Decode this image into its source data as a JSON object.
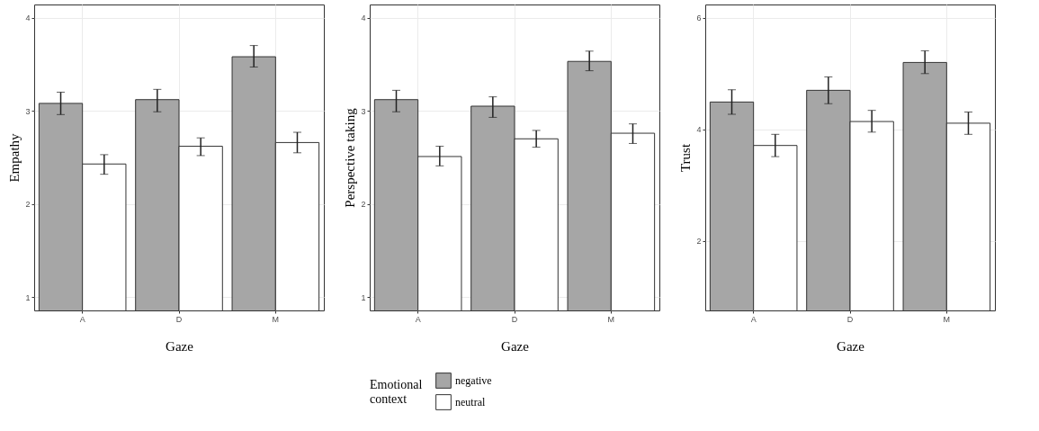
{
  "chart_data": [
    {
      "type": "bar",
      "categories": [
        "A",
        "D",
        "M"
      ],
      "xlabel": "Gaze",
      "ylabel": "Empathy",
      "ylim": [
        0.86,
        4.14
      ],
      "yticks": [
        1,
        2,
        3,
        4
      ],
      "grid": true,
      "series": [
        {
          "color": "#a6a6a6",
          "values": [
            3.08,
            3.12,
            3.58
          ],
          "errors": [
            [
              2.96,
              3.2
            ],
            [
              2.99,
              3.23
            ],
            [
              3.47,
              3.7
            ]
          ]
        },
        {
          "color": "#ffffff",
          "values": [
            2.43,
            2.62,
            2.66
          ],
          "errors": [
            [
              2.32,
              2.53
            ],
            [
              2.52,
              2.71
            ],
            [
              2.55,
              2.77
            ]
          ]
        }
      ]
    },
    {
      "type": "bar",
      "categories": [
        "A",
        "D",
        "M"
      ],
      "xlabel": "Gaze",
      "ylabel": "Perspective taking",
      "ylim": [
        0.86,
        4.14
      ],
      "yticks": [
        1,
        2,
        3,
        4
      ],
      "grid": true,
      "legend": "bottom",
      "legend_title": "Emotional context",
      "series": [
        {
          "name": "negative",
          "color": "#a6a6a6",
          "values": [
            3.12,
            3.05,
            3.53
          ],
          "errors": [
            [
              2.99,
              3.22
            ],
            [
              2.93,
              3.15
            ],
            [
              3.43,
              3.64
            ]
          ]
        },
        {
          "name": "neutral",
          "color": "#ffffff",
          "values": [
            2.51,
            2.7,
            2.76
          ],
          "errors": [
            [
              2.41,
              2.62
            ],
            [
              2.61,
              2.79
            ],
            [
              2.65,
              2.86
            ]
          ]
        }
      ]
    },
    {
      "type": "bar",
      "categories": [
        "A",
        "D",
        "M"
      ],
      "xlabel": "Gaze",
      "ylabel": "Trust",
      "ylim": [
        0.75,
        6.24
      ],
      "yticks": [
        2,
        4,
        6
      ],
      "grid": true,
      "series": [
        {
          "color": "#a6a6a6",
          "values": [
            4.49,
            4.7,
            5.2
          ],
          "errors": [
            [
              4.27,
              4.71
            ],
            [
              4.46,
              4.94
            ],
            [
              5.0,
              5.41
            ]
          ]
        },
        {
          "color": "#ffffff",
          "values": [
            3.71,
            4.14,
            4.11
          ],
          "errors": [
            [
              3.51,
              3.91
            ],
            [
              3.95,
              4.34
            ],
            [
              3.91,
              4.31
            ]
          ]
        }
      ]
    }
  ]
}
